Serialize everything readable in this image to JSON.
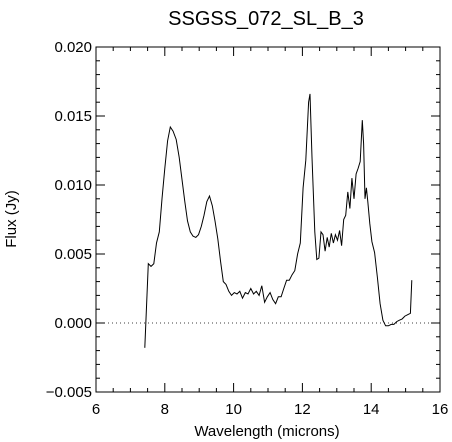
{
  "chart_data": {
    "type": "line",
    "title": "SSGSS_072_SL_B_3",
    "xlabel": "Wavelength (microns)",
    "ylabel": "Flux (Jy)",
    "xlim": [
      6,
      16
    ],
    "ylim": [
      -0.005,
      0.02
    ],
    "x_ticks": [
      6,
      8,
      10,
      12,
      14,
      16
    ],
    "y_ticks": [
      -0.005,
      0.0,
      0.005,
      0.01,
      0.015,
      0.02
    ],
    "x_tick_labels": [
      "6",
      "8",
      "10",
      "12",
      "14",
      "16"
    ],
    "y_tick_labels": [
      "−0.005",
      "0.000",
      "0.005",
      "0.010",
      "0.015",
      "0.020"
    ],
    "zero_line": {
      "y": 0.0,
      "style": "dotted"
    },
    "grid": false,
    "series": [
      {
        "color": "#000000",
        "x": [
          7.42,
          7.52,
          7.6,
          7.68,
          7.76,
          7.84,
          7.92,
          8.0,
          8.08,
          8.16,
          8.24,
          8.33,
          8.42,
          8.5,
          8.58,
          8.66,
          8.74,
          8.82,
          8.9,
          8.98,
          9.06,
          9.14,
          9.22,
          9.3,
          9.38,
          9.46,
          9.54,
          9.62,
          9.7,
          9.78,
          9.86,
          9.94,
          10.02,
          10.1,
          10.18,
          10.26,
          10.34,
          10.42,
          10.5,
          10.58,
          10.66,
          10.74,
          10.82,
          10.9,
          10.98,
          11.06,
          11.14,
          11.22,
          11.3,
          11.38,
          11.46,
          11.54,
          11.62,
          11.7,
          11.78,
          11.86,
          11.94,
          12.02,
          12.1,
          12.18,
          12.22,
          12.28,
          12.36,
          12.42,
          12.48,
          12.54,
          12.6,
          12.66,
          12.72,
          12.78,
          12.84,
          12.9,
          12.96,
          13.02,
          13.08,
          13.14,
          13.2,
          13.26,
          13.32,
          13.38,
          13.44,
          13.5,
          13.56,
          13.62,
          13.68,
          13.74,
          13.78,
          13.82,
          13.86,
          13.9,
          13.96,
          14.02,
          14.1,
          14.18,
          14.26,
          14.34,
          14.42,
          14.5,
          14.58,
          14.66,
          14.74,
          14.82,
          14.9,
          14.98,
          15.06,
          15.14,
          15.18
        ],
        "y": [
          -0.0018,
          0.0043,
          0.0041,
          0.0043,
          0.0058,
          0.0066,
          0.009,
          0.0112,
          0.0132,
          0.0142,
          0.0139,
          0.0133,
          0.012,
          0.0104,
          0.0088,
          0.0074,
          0.0066,
          0.0063,
          0.0062,
          0.0064,
          0.007,
          0.0078,
          0.0088,
          0.0092,
          0.0085,
          0.0074,
          0.0061,
          0.0045,
          0.003,
          0.0028,
          0.0023,
          0.002,
          0.0022,
          0.0021,
          0.0023,
          0.0018,
          0.0022,
          0.0021,
          0.0025,
          0.0021,
          0.0023,
          0.002,
          0.0027,
          0.0015,
          0.0019,
          0.0022,
          0.0017,
          0.0014,
          0.0019,
          0.0019,
          0.0025,
          0.0031,
          0.0031,
          0.0035,
          0.0038,
          0.005,
          0.0058,
          0.0098,
          0.0118,
          0.016,
          0.0166,
          0.012,
          0.0066,
          0.0046,
          0.0047,
          0.0066,
          0.0064,
          0.0052,
          0.0062,
          0.0055,
          0.0065,
          0.0058,
          0.0064,
          0.006,
          0.0067,
          0.0056,
          0.0075,
          0.0078,
          0.0095,
          0.0083,
          0.0105,
          0.009,
          0.0108,
          0.0112,
          0.0117,
          0.0147,
          0.013,
          0.009,
          0.0098,
          0.0088,
          0.0072,
          0.0059,
          0.0051,
          0.0033,
          0.0014,
          0.0002,
          -0.0002,
          -0.0002,
          -0.0001,
          -0.0001,
          0.0001,
          0.0002,
          0.0003,
          0.0005,
          0.0006,
          0.0007,
          0.0031
        ]
      }
    ]
  }
}
